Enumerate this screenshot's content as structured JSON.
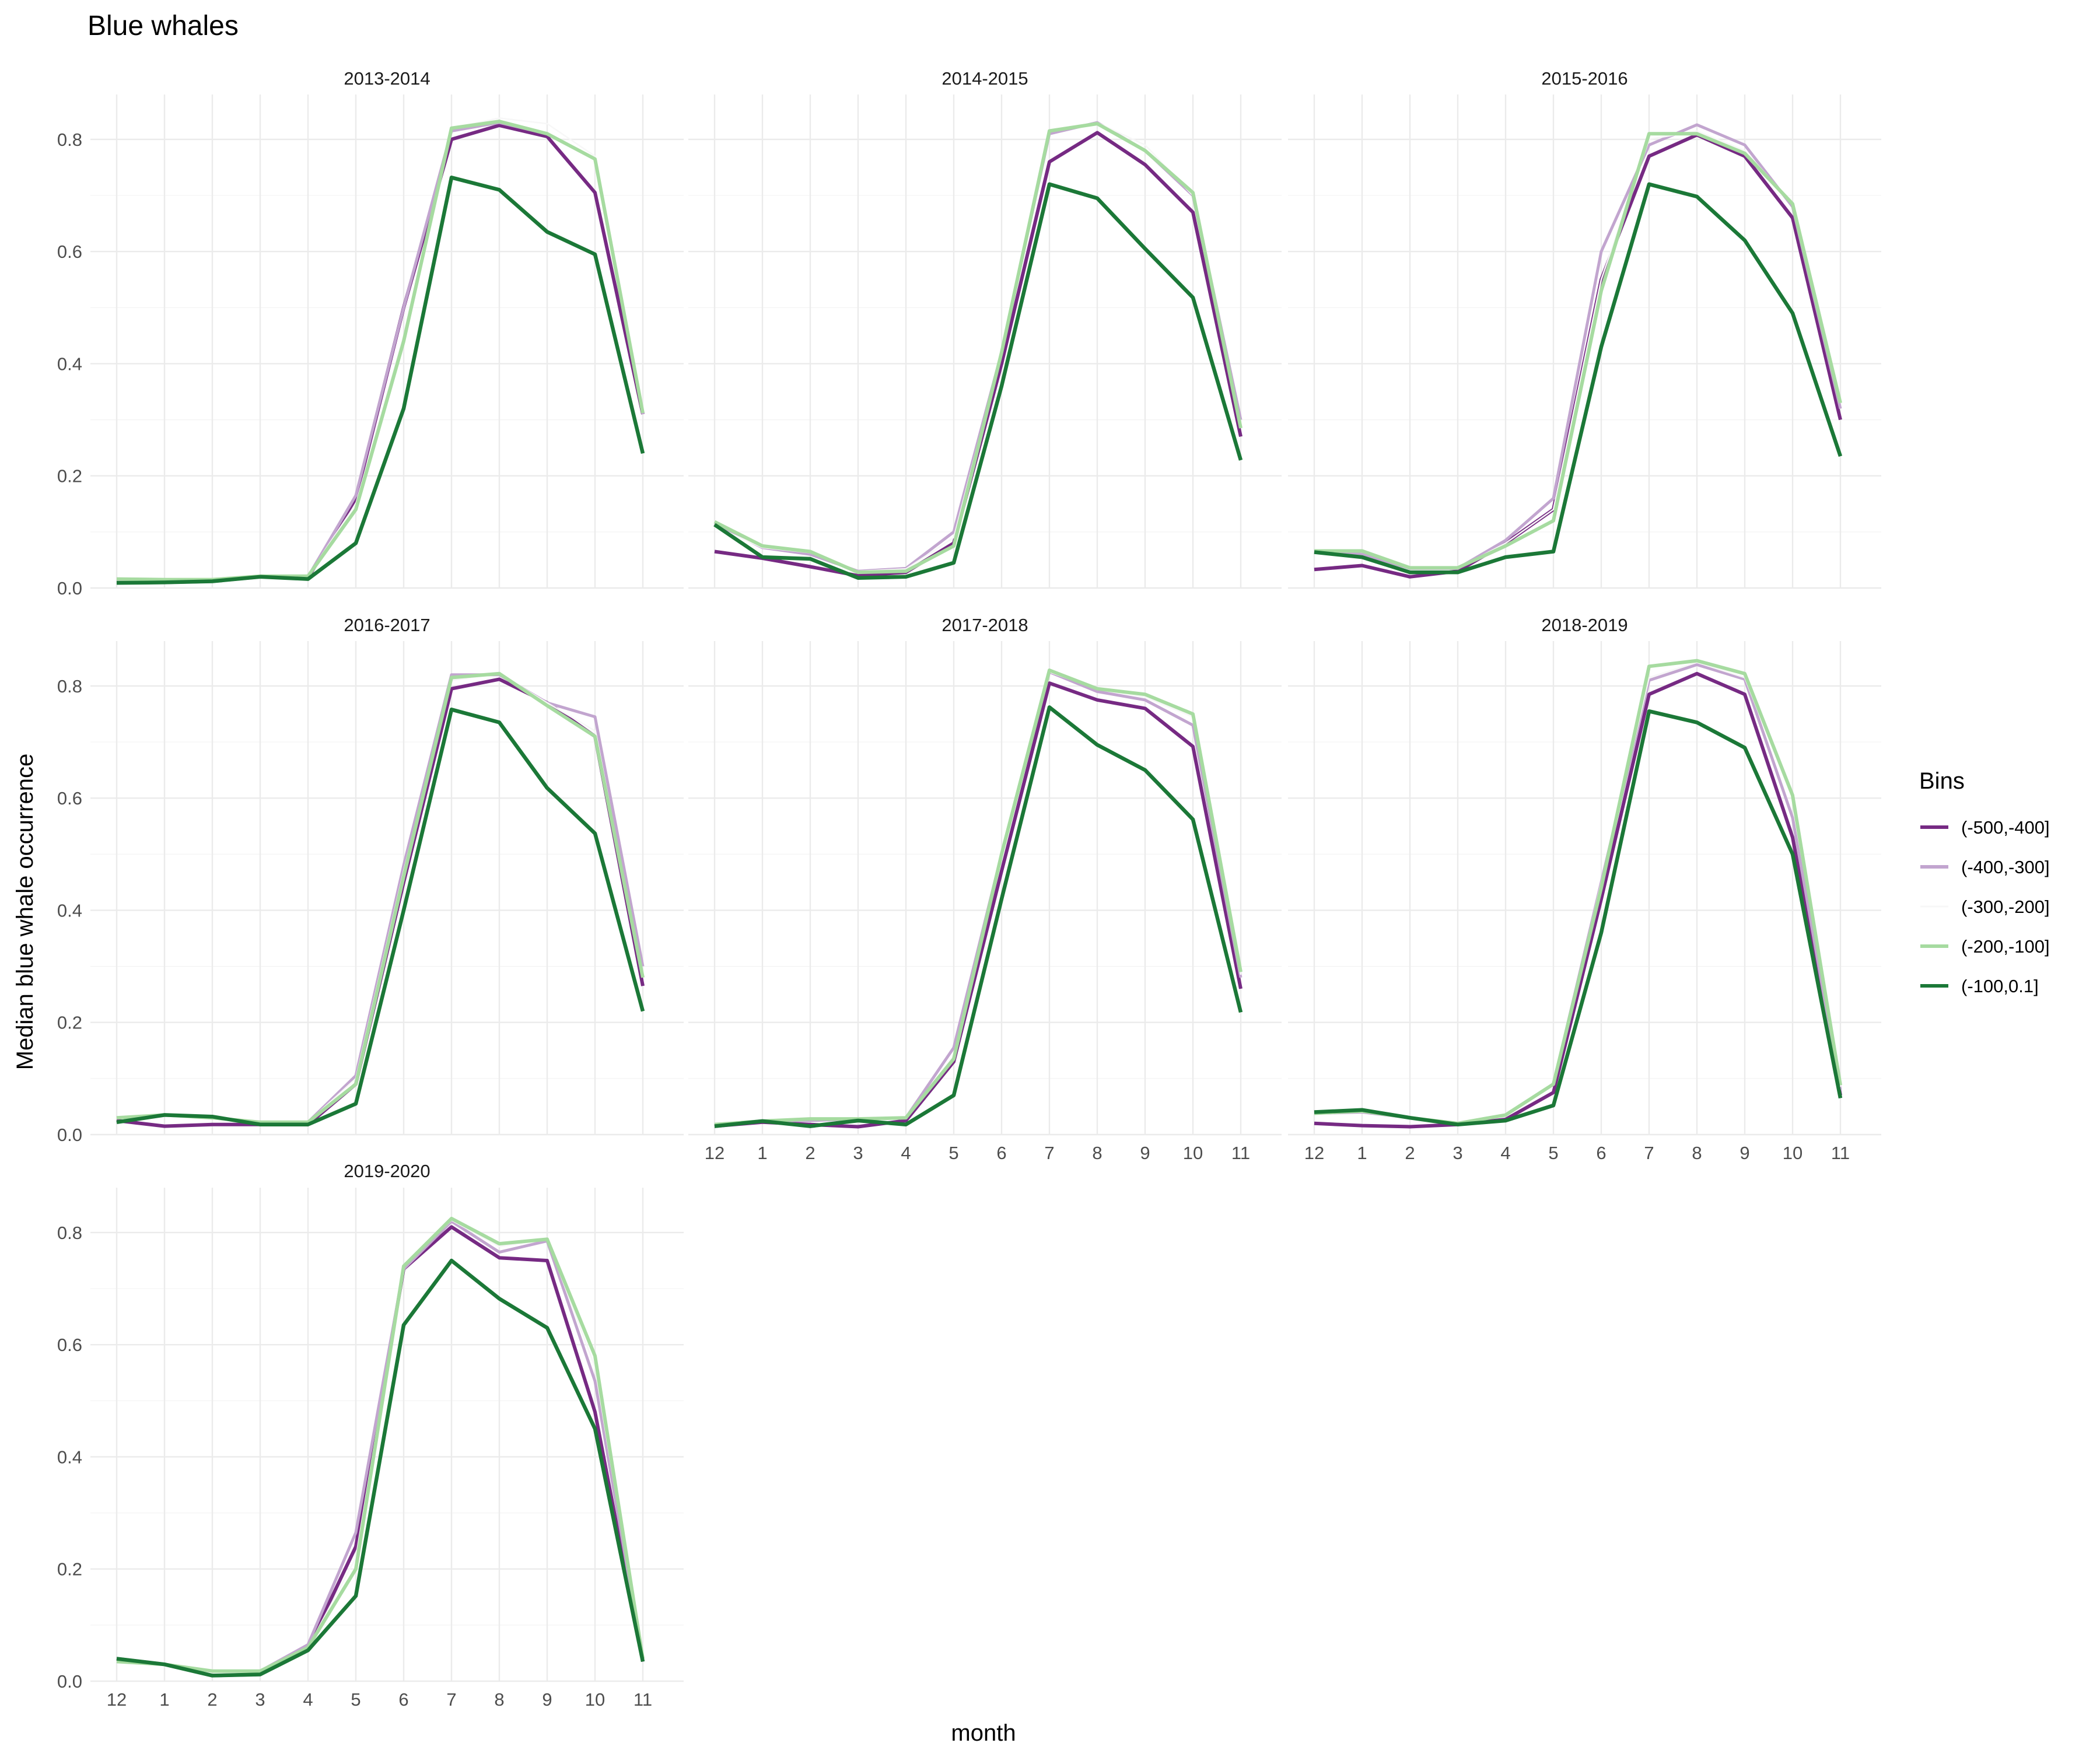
{
  "chart_data": {
    "type": "line",
    "title": "Blue whales",
    "xlabel": "month",
    "ylabel": "Median blue whale occurrence",
    "x_categories": [
      "12",
      "1",
      "2",
      "3",
      "4",
      "5",
      "6",
      "7",
      "8",
      "9",
      "10",
      "11"
    ],
    "ylim": [
      0,
      0.88
    ],
    "yticks": [
      "0.0",
      "0.2",
      "0.4",
      "0.6",
      "0.8"
    ],
    "grid": true,
    "legend": {
      "title": "Bins",
      "position": "right",
      "entries": [
        {
          "label": "(-500,-400]",
          "color": "#762a83"
        },
        {
          "label": "(-400,-300]",
          "color": "#c2a5cf"
        },
        {
          "label": "(-300,-200]",
          "color": "#f7f7f7"
        },
        {
          "label": "(-200,-100]",
          "color": "#a6dba0"
        },
        {
          "label": "(-100,0.1]",
          "color": "#1b7837"
        }
      ]
    },
    "panels": [
      {
        "title": "2013-2014",
        "series": [
          {
            "name": "(-500,-400]",
            "values": [
              0.01,
              0.01,
              0.012,
              0.02,
              0.018,
              0.16,
              0.5,
              0.8,
              0.825,
              0.805,
              0.705,
              0.31
            ]
          },
          {
            "name": "(-400,-300]",
            "values": [
              0.013,
              0.013,
              0.014,
              0.02,
              0.02,
              0.165,
              0.5,
              0.815,
              0.83,
              0.81,
              0.765,
              0.31
            ]
          },
          {
            "name": "(-300,-200]",
            "values": [
              0.015,
              0.015,
              0.015,
              0.021,
              0.022,
              0.15,
              0.45,
              0.82,
              0.838,
              0.828,
              0.77,
              0.315
            ]
          },
          {
            "name": "(-200,-100]",
            "values": [
              0.016,
              0.015,
              0.015,
              0.021,
              0.021,
              0.14,
              0.44,
              0.82,
              0.832,
              0.81,
              0.765,
              0.312
            ]
          },
          {
            "name": "(-100,0.1]",
            "values": [
              0.009,
              0.01,
              0.012,
              0.02,
              0.016,
              0.08,
              0.32,
              0.732,
              0.71,
              0.635,
              0.595,
              0.24
            ]
          }
        ]
      },
      {
        "title": "2014-2015",
        "series": [
          {
            "name": "(-500,-400]",
            "values": [
              0.065,
              0.053,
              0.038,
              0.022,
              0.028,
              0.08,
              0.4,
              0.76,
              0.812,
              0.755,
              0.67,
              0.27
            ]
          },
          {
            "name": "(-400,-300]",
            "values": [
              0.115,
              0.072,
              0.06,
              0.03,
              0.035,
              0.1,
              0.42,
              0.81,
              0.83,
              0.78,
              0.7,
              0.3
            ]
          },
          {
            "name": "(-300,-200]",
            "values": [
              0.11,
              0.072,
              0.063,
              0.03,
              0.034,
              0.09,
              0.42,
              0.815,
              0.83,
              0.79,
              0.7,
              0.29
            ]
          },
          {
            "name": "(-200,-100]",
            "values": [
              0.118,
              0.075,
              0.065,
              0.028,
              0.03,
              0.075,
              0.42,
              0.815,
              0.828,
              0.78,
              0.705,
              0.285
            ]
          },
          {
            "name": "(-100,0.1]",
            "values": [
              0.113,
              0.055,
              0.052,
              0.018,
              0.02,
              0.045,
              0.36,
              0.72,
              0.695,
              0.605,
              0.518,
              0.228
            ]
          }
        ]
      },
      {
        "title": "2015-2016",
        "series": [
          {
            "name": "(-500,-400]",
            "values": [
              0.033,
              0.04,
              0.02,
              0.03,
              0.08,
              0.14,
              0.55,
              0.77,
              0.808,
              0.77,
              0.66,
              0.3
            ]
          },
          {
            "name": "(-400,-300]",
            "values": [
              0.065,
              0.06,
              0.035,
              0.035,
              0.085,
              0.16,
              0.6,
              0.79,
              0.826,
              0.79,
              0.68,
              0.32
            ]
          },
          {
            "name": "(-300,-200]",
            "values": [
              0.066,
              0.065,
              0.035,
              0.035,
              0.08,
              0.14,
              0.55,
              0.8,
              0.815,
              0.78,
              0.685,
              0.33
            ]
          },
          {
            "name": "(-200,-100]",
            "values": [
              0.066,
              0.066,
              0.036,
              0.036,
              0.075,
              0.12,
              0.53,
              0.81,
              0.81,
              0.775,
              0.685,
              0.33
            ]
          },
          {
            "name": "(-100,0.1]",
            "values": [
              0.064,
              0.055,
              0.028,
              0.028,
              0.055,
              0.065,
              0.43,
              0.72,
              0.698,
              0.62,
              0.49,
              0.235
            ]
          }
        ]
      },
      {
        "title": "2016-2017",
        "series": [
          {
            "name": "(-500,-400]",
            "values": [
              0.025,
              0.015,
              0.018,
              0.018,
              0.018,
              0.09,
              0.45,
              0.795,
              0.812,
              0.77,
              0.71,
              0.265
            ]
          },
          {
            "name": "(-400,-300]",
            "values": [
              0.03,
              0.035,
              0.03,
              0.022,
              0.022,
              0.105,
              0.48,
              0.82,
              0.82,
              0.77,
              0.745,
              0.3
            ]
          },
          {
            "name": "(-300,-200]",
            "values": [
              0.03,
              0.035,
              0.03,
              0.022,
              0.022,
              0.1,
              0.47,
              0.81,
              0.822,
              0.77,
              0.72,
              0.285
            ]
          },
          {
            "name": "(-200,-100]",
            "values": [
              0.03,
              0.035,
              0.03,
              0.022,
              0.022,
              0.09,
              0.46,
              0.815,
              0.822,
              0.765,
              0.71,
              0.28
            ]
          },
          {
            "name": "(-100,0.1]",
            "values": [
              0.022,
              0.035,
              0.032,
              0.018,
              0.018,
              0.055,
              0.4,
              0.758,
              0.735,
              0.618,
              0.537,
              0.22
            ]
          }
        ]
      },
      {
        "title": "2017-2018",
        "series": [
          {
            "name": "(-500,-400]",
            "values": [
              0.015,
              0.022,
              0.018,
              0.014,
              0.025,
              0.13,
              0.47,
              0.805,
              0.775,
              0.76,
              0.692,
              0.26
            ]
          },
          {
            "name": "(-400,-300]",
            "values": [
              0.018,
              0.024,
              0.025,
              0.028,
              0.03,
              0.155,
              0.5,
              0.825,
              0.79,
              0.775,
              0.73,
              0.28
            ]
          },
          {
            "name": "(-300,-200]",
            "values": [
              0.018,
              0.024,
              0.027,
              0.028,
              0.03,
              0.14,
              0.5,
              0.825,
              0.795,
              0.78,
              0.745,
              0.285
            ]
          },
          {
            "name": "(-200,-100]",
            "values": [
              0.018,
              0.024,
              0.028,
              0.028,
              0.03,
              0.135,
              0.5,
              0.828,
              0.795,
              0.785,
              0.75,
              0.29
            ]
          },
          {
            "name": "(-100,0.1]",
            "values": [
              0.015,
              0.024,
              0.015,
              0.025,
              0.018,
              0.07,
              0.42,
              0.762,
              0.695,
              0.65,
              0.562,
              0.218
            ]
          }
        ]
      },
      {
        "title": "2018-2019",
        "series": [
          {
            "name": "(-500,-400]",
            "values": [
              0.02,
              0.016,
              0.014,
              0.018,
              0.027,
              0.075,
              0.42,
              0.785,
              0.822,
              0.785,
              0.53,
              0.07
            ]
          },
          {
            "name": "(-400,-300]",
            "values": [
              0.038,
              0.04,
              0.03,
              0.02,
              0.035,
              0.09,
              0.45,
              0.81,
              0.838,
              0.812,
              0.565,
              0.08
            ]
          },
          {
            "name": "(-300,-200]",
            "values": [
              0.038,
              0.04,
              0.03,
              0.02,
              0.035,
              0.09,
              0.45,
              0.815,
              0.842,
              0.815,
              0.6,
              0.085
            ]
          },
          {
            "name": "(-200,-100]",
            "values": [
              0.038,
              0.042,
              0.03,
              0.02,
              0.035,
              0.09,
              0.44,
              0.835,
              0.845,
              0.822,
              0.605,
              0.088
            ]
          },
          {
            "name": "(-100,0.1]",
            "values": [
              0.04,
              0.044,
              0.03,
              0.018,
              0.025,
              0.052,
              0.36,
              0.755,
              0.735,
              0.69,
              0.5,
              0.065
            ]
          }
        ]
      },
      {
        "title": "2019-2020",
        "series": [
          {
            "name": "(-500,-400]",
            "values": [
              0.04,
              0.03,
              0.01,
              0.012,
              0.06,
              0.24,
              0.735,
              0.81,
              0.755,
              0.75,
              0.48,
              0.035
            ]
          },
          {
            "name": "(-400,-300]",
            "values": [
              0.035,
              0.03,
              0.018,
              0.018,
              0.065,
              0.265,
              0.735,
              0.82,
              0.765,
              0.785,
              0.535,
              0.04
            ]
          },
          {
            "name": "(-300,-200]",
            "values": [
              0.035,
              0.03,
              0.018,
              0.018,
              0.06,
              0.22,
              0.74,
              0.822,
              0.775,
              0.788,
              0.56,
              0.04
            ]
          },
          {
            "name": "(-200,-100]",
            "values": [
              0.035,
              0.03,
              0.018,
              0.018,
              0.06,
              0.2,
              0.74,
              0.825,
              0.78,
              0.788,
              0.58,
              0.04
            ]
          },
          {
            "name": "(-100,0.1]",
            "values": [
              0.04,
              0.03,
              0.01,
              0.012,
              0.055,
              0.152,
              0.635,
              0.75,
              0.682,
              0.63,
              0.45,
              0.035
            ]
          }
        ]
      }
    ]
  }
}
